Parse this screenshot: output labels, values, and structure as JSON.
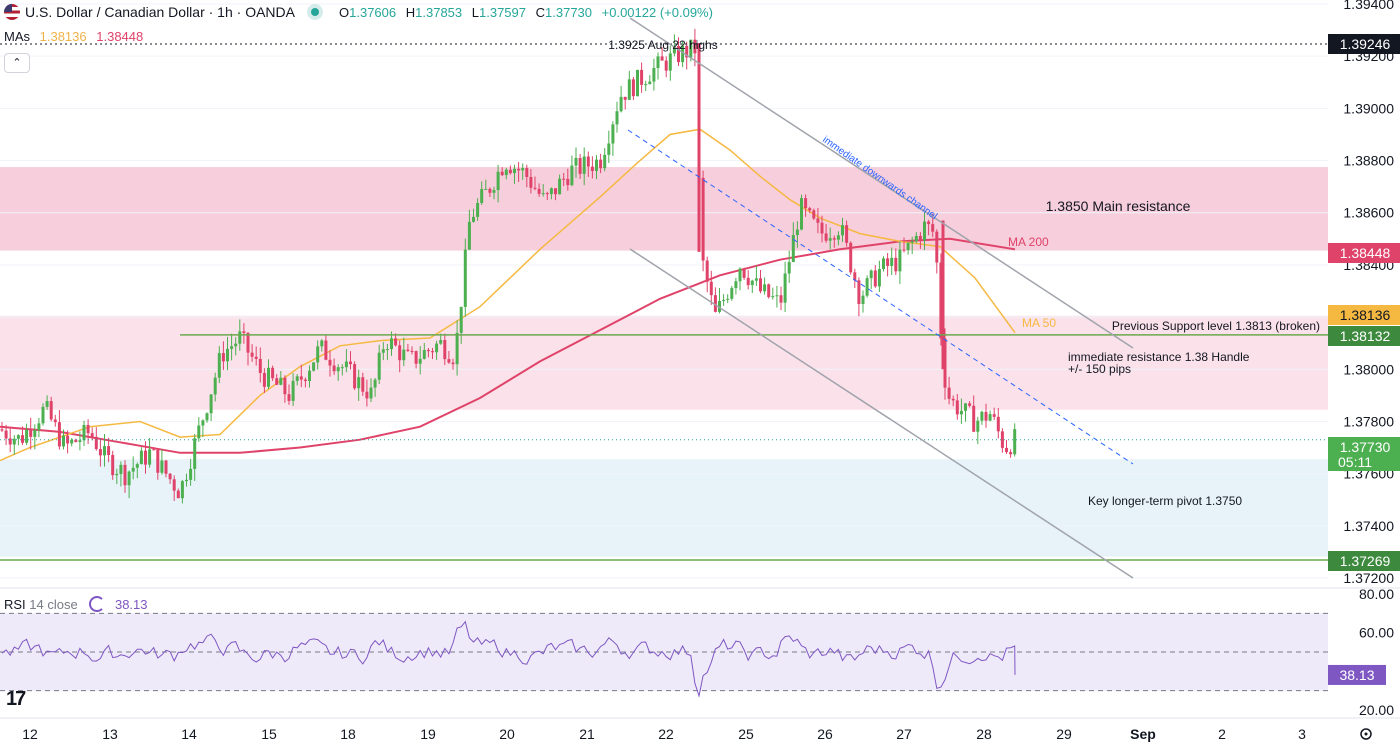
{
  "header": {
    "symbol_title": "U.S. Dollar / Canadian Dollar · 1h · OANDA",
    "open_label": "O",
    "open": "1.37606",
    "high_label": "H",
    "high": "1.37853",
    "low_label": "L",
    "low": "1.37597",
    "close_label": "C",
    "close": "1.37730",
    "change": "+0.00122 (+0.09%)"
  },
  "indicators": {
    "mas_label": "MAs",
    "ma50_value": "1.38136",
    "ma200_value": "1.38448",
    "rsi_label": "RSI",
    "rsi_params": "14 close",
    "rsi_value": "38.13"
  },
  "colors": {
    "up": "#26a69a",
    "up_candle": "#4caf50",
    "down": "#e0436a",
    "ma50": "#f5b942",
    "ma200": "#e0436a",
    "rsi": "#7e57c2",
    "resistance_zone": "#f7cedb",
    "mid_zone": "#fbe1e9",
    "pivot_zone": "#e7f3f9"
  },
  "icons": {
    "collapse": "chevron-up-icon",
    "logo": "tradingview-logo",
    "settings": "gear-icon",
    "rsi": "cycle-icon"
  },
  "chart_data": {
    "type": "candlestick",
    "price_axis": {
      "ticks": [
        "1.39400",
        "1.39200",
        "1.39000",
        "1.38800",
        "1.38600",
        "1.38400",
        "1.38200",
        "1.38000",
        "1.37800",
        "1.37600",
        "1.37400",
        "1.37200"
      ],
      "ylim": [
        1.3716,
        1.3944
      ]
    },
    "rsi_axis": {
      "ticks": [
        "80.00",
        "60.00",
        "20.00"
      ],
      "levels": [
        70,
        50,
        30
      ],
      "ylim": [
        18,
        84
      ]
    },
    "x_ticks": [
      "12",
      "13",
      "14",
      "15",
      "18",
      "19",
      "20",
      "21",
      "22",
      "25",
      "26",
      "27",
      "28",
      "29",
      "Sep",
      "2",
      "3"
    ],
    "price_labels": [
      {
        "text": "1.39246",
        "value": 1.39246,
        "style": "black"
      },
      {
        "text": "1.38448",
        "value": 1.38448,
        "style": "ma200"
      },
      {
        "text": "1.38136",
        "value": 1.38136,
        "style": "ma50"
      },
      {
        "text": "1.38132",
        "value": 1.38132,
        "style": "green"
      },
      {
        "text": "1.37730",
        "sub": "05:11",
        "value": 1.3773,
        "style": "green"
      },
      {
        "text": "1.37269",
        "value": 1.37269,
        "style": "green"
      }
    ],
    "rsi_label_value": "38.13",
    "zones": [
      {
        "name": "main-resistance",
        "from": 1.38455,
        "to": 1.38775
      },
      {
        "name": "handle-resistance",
        "from": 1.37845,
        "to": 1.38205
      },
      {
        "name": "pivot",
        "from": 1.37282,
        "to": 1.37655
      }
    ],
    "annotations": {
      "aug22": "1.3925 Aug 22 highs",
      "main_res": "1.3850 Main resistance",
      "prev_support": "Previous Support level 1.3813 (broken)",
      "handle_l1": "immediate resistance 1.38 Handle",
      "handle_l2": "+/- 150 pips",
      "pivot": "Key longer-term pivot 1.3750",
      "channel": "immediate downwards channel",
      "ma200": "MA 200",
      "ma50": "MA 50"
    },
    "ma50": [
      [
        0,
        1.3765
      ],
      [
        30,
        1.377
      ],
      [
        90,
        1.3778
      ],
      [
        140,
        1.378
      ],
      [
        180,
        1.3774
      ],
      [
        220,
        1.3775
      ],
      [
        260,
        1.379
      ],
      [
        300,
        1.3801
      ],
      [
        340,
        1.3809
      ],
      [
        380,
        1.3811
      ],
      [
        430,
        1.3812
      ],
      [
        480,
        1.3824
      ],
      [
        540,
        1.3846
      ],
      [
        600,
        1.3866
      ],
      [
        640,
        1.388
      ],
      [
        670,
        1.389
      ],
      [
        700,
        1.3892
      ],
      [
        730,
        1.3884
      ],
      [
        760,
        1.3874
      ],
      [
        790,
        1.3865
      ],
      [
        820,
        1.3858
      ],
      [
        860,
        1.3852
      ],
      [
        900,
        1.3849
      ],
      [
        940,
        1.3847
      ],
      [
        975,
        1.3835
      ],
      [
        1015,
        1.3814
      ]
    ],
    "ma200": [
      [
        0,
        1.3778
      ],
      [
        60,
        1.3776
      ],
      [
        120,
        1.3772
      ],
      [
        180,
        1.3768
      ],
      [
        240,
        1.3768
      ],
      [
        300,
        1.377
      ],
      [
        360,
        1.3773
      ],
      [
        420,
        1.3778
      ],
      [
        480,
        1.3789
      ],
      [
        540,
        1.3803
      ],
      [
        600,
        1.3815
      ],
      [
        660,
        1.3827
      ],
      [
        720,
        1.3836
      ],
      [
        780,
        1.3842
      ],
      [
        840,
        1.3846
      ],
      [
        900,
        1.3849
      ],
      [
        950,
        1.385
      ],
      [
        1015,
        1.3846
      ]
    ],
    "candles_note": "hourly OHLC path from 1.3775 to 1.3925 (Aug 22) down to 1.3773"
  }
}
